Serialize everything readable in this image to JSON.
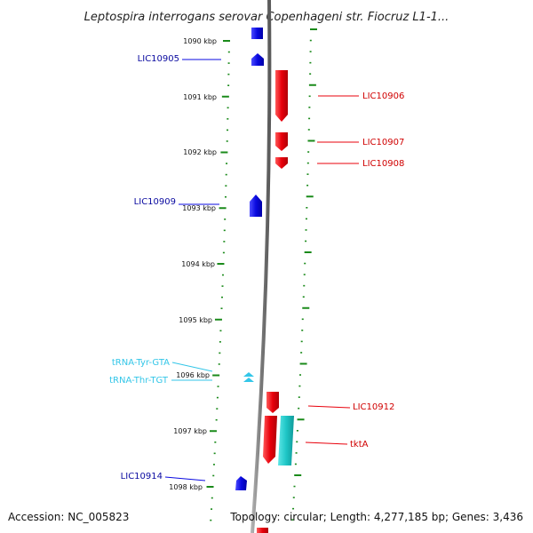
{
  "title": "Leptospira interrogans serovar Copenhageni str. Fiocruz L1-1...",
  "accession": "Accession: NC_005823",
  "topology": "Topology: circular; Length: 4,277,185 bp; Genes: 3,436",
  "colors": {
    "forward_gene": "#e8000b",
    "reverse_gene": "#0a0ae0",
    "trna": "#33c6e8",
    "rrna_teal": "#1fc7c7",
    "tick": "#1a8a1a",
    "backbone": "#888888"
  },
  "kbp_ticks": [
    "1090 kbp",
    "1091 kbp",
    "1092 kbp",
    "1093 kbp",
    "1094 kbp",
    "1095 kbp",
    "1096 kbp",
    "1097 kbp",
    "1098 kbp"
  ],
  "features": [
    {
      "name": "LIC10905",
      "strand": "reverse",
      "type": "gene"
    },
    {
      "name": "LIC10906",
      "strand": "forward",
      "type": "gene"
    },
    {
      "name": "LIC10907",
      "strand": "forward",
      "type": "gene"
    },
    {
      "name": "LIC10908",
      "strand": "forward",
      "type": "gene"
    },
    {
      "name": "LIC10909",
      "strand": "reverse",
      "type": "gene"
    },
    {
      "name": "tRNA-Tyr-GTA",
      "strand": "reverse",
      "type": "tRNA"
    },
    {
      "name": "tRNA-Thr-TGT",
      "strand": "reverse",
      "type": "tRNA"
    },
    {
      "name": "LIC10912",
      "strand": "forward",
      "type": "gene"
    },
    {
      "name": "tktA",
      "strand": "forward",
      "type": "gene"
    },
    {
      "name": "LIC10914",
      "strand": "reverse",
      "type": "gene"
    }
  ]
}
